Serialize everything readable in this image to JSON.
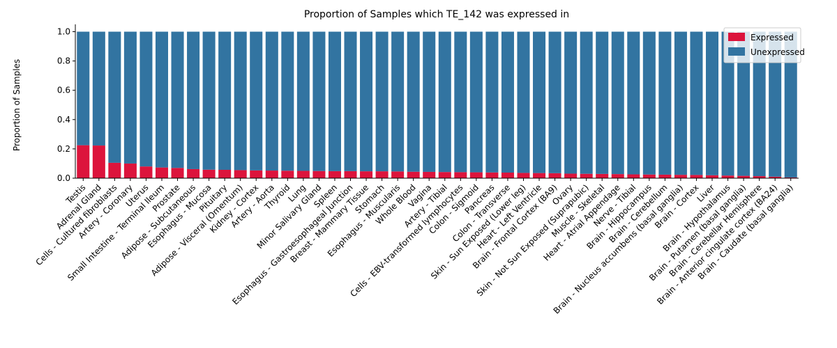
{
  "chart_data": {
    "type": "bar",
    "stacked": true,
    "title": "Proportion of Samples which TE_142 was expressed in",
    "xlabel": "",
    "ylabel": "Proportion of Samples",
    "ylim": [
      0,
      1.05
    ],
    "yticks": [
      "0.0",
      "0.2",
      "0.4",
      "0.6",
      "0.8",
      "1.0"
    ],
    "grid": false,
    "legend_position": "top-right",
    "categories": [
      "Testis",
      "Adrenal Gland",
      "Cells - Cultured fibroblasts",
      "Artery - Coronary",
      "Uterus",
      "Small Intestine - Terminal Ileum",
      "Prostate",
      "Adipose - Subcutaneous",
      "Esophagus - Mucosa",
      "Pituitary",
      "Adipose - Visceral (Omentum)",
      "Kidney - Cortex",
      "Artery - Aorta",
      "Thyroid",
      "Lung",
      "Minor Salivary Gland",
      "Spleen",
      "Esophagus - Gastroesophageal Junction",
      "Breast - Mammary Tissue",
      "Stomach",
      "Esophagus - Muscularis",
      "Whole Blood",
      "Vagina",
      "Artery - Tibial",
      "Cells - EBV-transformed lymphocytes",
      "Colon - Sigmoid",
      "Pancreas",
      "Colon - Transverse",
      "Skin - Sun Exposed (Lower leg)",
      "Heart - Left Ventricle",
      "Brain - Frontal Cortex (BA9)",
      "Ovary",
      "Skin - Not Sun Exposed (Suprapubic)",
      "Muscle - Skeletal",
      "Heart - Atrial Appendage",
      "Nerve - Tibial",
      "Brain - Hippocampus",
      "Brain - Cerebellum",
      "Brain - Nucleus accumbens (basal ganglia)",
      "Brain - Cortex",
      "Liver",
      "Brain - Hypothalamus",
      "Brain - Putamen (basal ganglia)",
      "Brain - Cerebellar Hemisphere",
      "Brain - Anterior cingulate cortex (BA24)",
      "Brain - Caudate (basal ganglia)"
    ],
    "series": [
      {
        "name": "Expressed",
        "color": "#dc143c",
        "values": [
          0.225,
          0.223,
          0.105,
          0.1,
          0.08,
          0.073,
          0.07,
          0.062,
          0.058,
          0.057,
          0.055,
          0.053,
          0.052,
          0.051,
          0.05,
          0.049,
          0.048,
          0.048,
          0.047,
          0.047,
          0.046,
          0.044,
          0.043,
          0.042,
          0.041,
          0.04,
          0.039,
          0.038,
          0.036,
          0.035,
          0.034,
          0.031,
          0.03,
          0.029,
          0.028,
          0.026,
          0.025,
          0.024,
          0.023,
          0.022,
          0.02,
          0.018,
          0.016,
          0.014,
          0.01,
          0.005
        ]
      },
      {
        "name": "Unexpressed",
        "color": "#3274a1",
        "values": [
          0.775,
          0.777,
          0.895,
          0.9,
          0.92,
          0.927,
          0.93,
          0.938,
          0.942,
          0.943,
          0.945,
          0.947,
          0.948,
          0.949,
          0.95,
          0.951,
          0.952,
          0.952,
          0.953,
          0.953,
          0.954,
          0.956,
          0.957,
          0.958,
          0.959,
          0.96,
          0.961,
          0.962,
          0.964,
          0.965,
          0.966,
          0.969,
          0.97,
          0.971,
          0.972,
          0.974,
          0.975,
          0.976,
          0.977,
          0.978,
          0.98,
          0.982,
          0.984,
          0.986,
          0.99,
          0.995
        ]
      }
    ]
  }
}
